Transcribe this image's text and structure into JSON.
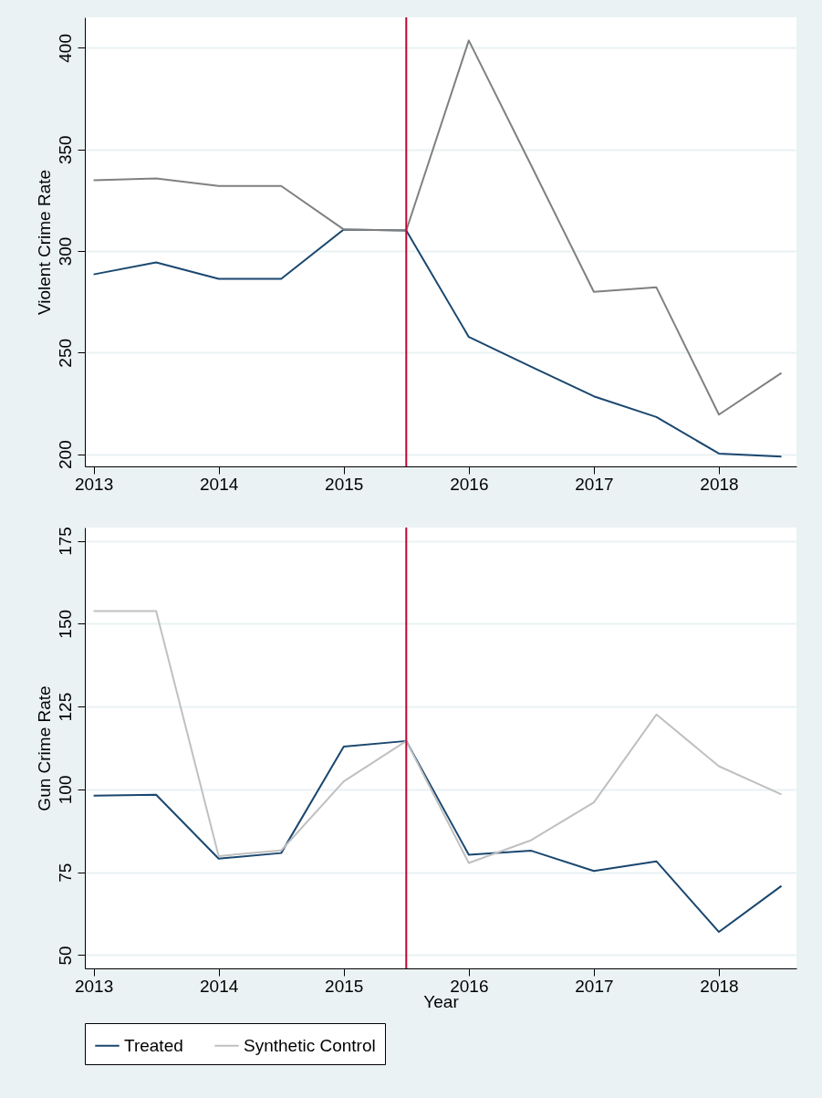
{
  "chart_data": [
    {
      "type": "line",
      "ylabel": "Violent Crime Rate",
      "x": [
        2013,
        2013.5,
        2014,
        2014.5,
        2015,
        2015.5,
        2016,
        2016.5,
        2017,
        2017.5,
        2018,
        2018.5
      ],
      "xlim": [
        2012.93,
        2018.62
      ],
      "xticks": [
        2013,
        2014,
        2015,
        2016,
        2017,
        2018
      ],
      "ylim": [
        194,
        415
      ],
      "yticks": [
        200,
        250,
        300,
        350,
        400
      ],
      "grid": "y",
      "series": [
        {
          "color": "#1a476f",
          "values": [
            288.5,
            294.4,
            286.3,
            286.3,
            310.6,
            310.1,
            257.7,
            243.0,
            228.5,
            218.3,
            200.3,
            198.8
          ]
        },
        {
          "color": "#808080",
          "values": [
            334.8,
            335.7,
            332.0,
            332.0,
            310.6,
            310.1,
            403.6,
            342,
            279.9,
            282.1,
            219.5,
            240.0
          ]
        }
      ],
      "ref_lines": [
        {
          "axis": "x",
          "value": 2015.5,
          "color": "#c10534"
        }
      ]
    },
    {
      "type": "line",
      "xlabel": "Year",
      "ylabel": "Gun Crime Rate",
      "x": [
        2013,
        2013.5,
        2014,
        2014.5,
        2015,
        2015.5,
        2016,
        2016.5,
        2017,
        2017.5,
        2018,
        2018.5
      ],
      "xlim": [
        2012.93,
        2018.62
      ],
      "xticks": [
        2013,
        2014,
        2015,
        2016,
        2017,
        2018
      ],
      "ylim": [
        46,
        179
      ],
      "yticks": [
        50,
        75,
        100,
        125,
        150,
        175
      ],
      "grid": "y",
      "legend": "bottom",
      "series": [
        {
          "name": "Treated",
          "color": "#1a476f",
          "values": [
            98.1,
            98.4,
            79.1,
            80.8,
            112.9,
            114.6,
            80.3,
            81.5,
            75.4,
            78.3,
            57.0,
            70.9
          ]
        },
        {
          "name": "Synthetic Control",
          "color": "#c0c0c0",
          "values": [
            153.8,
            153.8,
            79.9,
            81.6,
            102.4,
            114.6,
            77.8,
            84.7,
            96.1,
            122.6,
            107.0,
            98.5
          ]
        }
      ],
      "ref_lines": [
        {
          "axis": "x",
          "value": 2015.5,
          "color": "#c10534"
        }
      ]
    }
  ]
}
